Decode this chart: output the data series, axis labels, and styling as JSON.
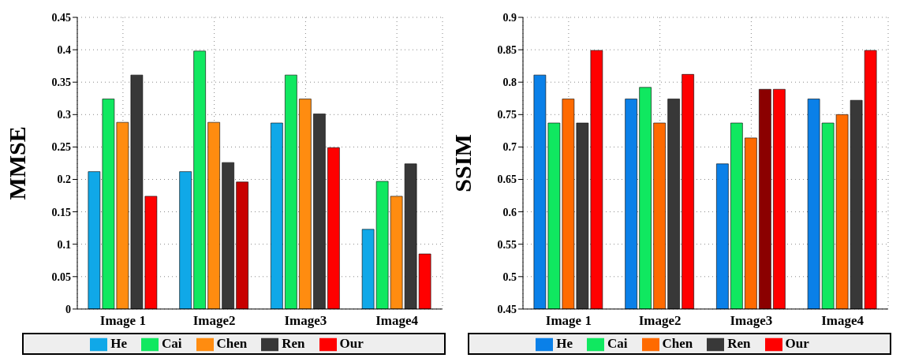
{
  "chart_data": [
    {
      "type": "bar",
      "ylabel": "MMSE",
      "categories": [
        "Image 1",
        "Image2",
        "Image3",
        "Image4"
      ],
      "series": [
        {
          "name": "He",
          "color": "#10a8e8",
          "values": [
            0.212,
            0.212,
            0.287,
            0.123
          ]
        },
        {
          "name": "Cai",
          "color": "#10e860",
          "values": [
            0.324,
            0.398,
            0.361,
            0.197
          ]
        },
        {
          "name": "Chen",
          "color": "#ff8c10",
          "values": [
            0.288,
            0.288,
            0.324,
            0.174
          ]
        },
        {
          "name": "Ren",
          "color": "#383838",
          "values": [
            0.361,
            0.226,
            0.301,
            0.224
          ]
        },
        {
          "name": "Our",
          "color": "#ff0000",
          "colors": [
            "#ff0000",
            "#c80000",
            "#ff0000",
            "#ff0000"
          ],
          "values": [
            0.174,
            0.196,
            0.249,
            0.085
          ]
        }
      ],
      "ylim": [
        0,
        0.45
      ],
      "yticks": [
        0,
        0.05,
        0.1,
        0.15,
        0.2,
        0.25,
        0.3,
        0.35,
        0.4,
        0.45
      ],
      "grid": true,
      "legend": "bottom"
    },
    {
      "type": "bar",
      "ylabel": "SSIM",
      "categories": [
        "Image 1",
        "Image2",
        "Image3",
        "Image4"
      ],
      "series": [
        {
          "name": "He",
          "color": "#0a80e8",
          "values": [
            0.811,
            0.774,
            0.674,
            0.774
          ]
        },
        {
          "name": "Cai",
          "color": "#10e860",
          "values": [
            0.737,
            0.792,
            0.737,
            0.737
          ]
        },
        {
          "name": "Chen",
          "color": "#ff6a00",
          "values": [
            0.774,
            0.737,
            0.714,
            0.75
          ]
        },
        {
          "name": "Ren",
          "color": "#383838",
          "colors": [
            "#383838",
            "#383838",
            "#8b0000",
            "#383838"
          ],
          "values": [
            0.737,
            0.774,
            0.789,
            0.772
          ]
        },
        {
          "name": "Our",
          "color": "#ff0000",
          "values": [
            0.849,
            0.812,
            0.789,
            0.849
          ]
        }
      ],
      "ylim": [
        0.45,
        0.9
      ],
      "yticks": [
        0.45,
        0.5,
        0.55,
        0.6,
        0.65,
        0.7,
        0.75,
        0.8,
        0.85,
        0.9
      ],
      "grid": true,
      "legend": "bottom"
    }
  ]
}
